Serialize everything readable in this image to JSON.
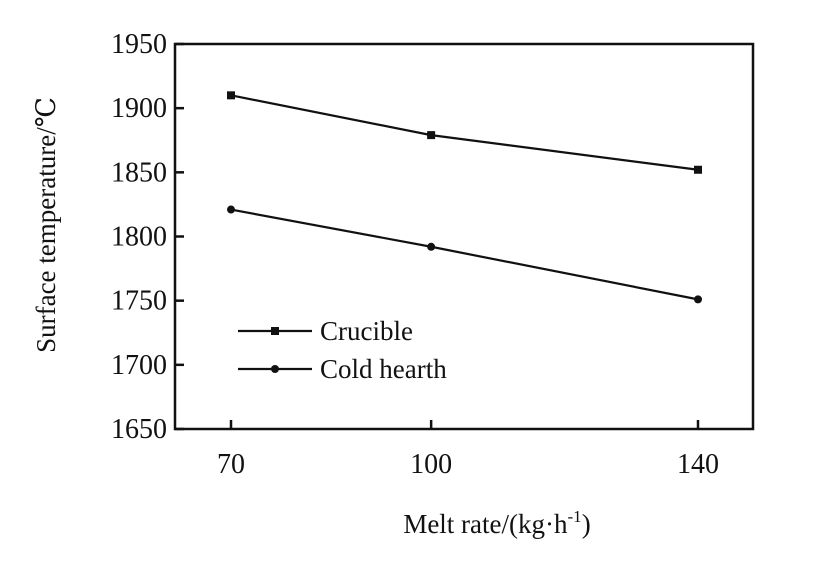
{
  "chart_data": {
    "type": "line",
    "title": "",
    "xlabel": "Melt rate/(kg·h",
    "xlabel_sup": "-1",
    "xlabel_tail": ")",
    "ylabel": "Surface temperature/℃",
    "x": [
      70,
      100,
      140
    ],
    "x_tick_labels": [
      "70",
      "100",
      "140"
    ],
    "xlim": [
      60,
      150
    ],
    "ylim": [
      1650,
      1950
    ],
    "y_ticks": [
      1650,
      1700,
      1750,
      1800,
      1850,
      1900,
      1950
    ],
    "y_tick_labels": [
      "1650",
      "1700",
      "1750",
      "1800",
      "1850",
      "1900",
      "1950"
    ],
    "legend_position": "lower-left",
    "series": [
      {
        "name": "Crucible",
        "marker": "square",
        "values": [
          1910,
          1879,
          1852
        ]
      },
      {
        "name": "Cold hearth",
        "marker": "circle",
        "values": [
          1821,
          1792,
          1751
        ]
      }
    ],
    "colors": {
      "line": "#111111",
      "background": "#ffffff"
    }
  }
}
